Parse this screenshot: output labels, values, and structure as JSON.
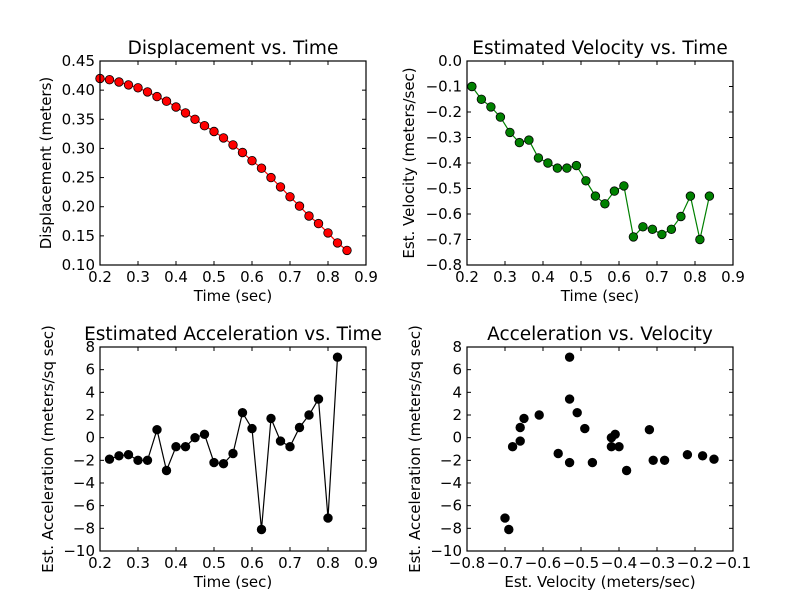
{
  "chart_data": [
    {
      "type": "line",
      "title": "Displacement vs. Time",
      "xlabel": "Time (sec)",
      "ylabel": "Displacement (meters)",
      "xlim": [
        0.2,
        0.9
      ],
      "ylim": [
        0.1,
        0.45
      ],
      "xticks": [
        "0.2",
        "0.3",
        "0.4",
        "0.5",
        "0.6",
        "0.7",
        "0.8",
        "0.9"
      ],
      "yticks": [
        "0.10",
        "0.15",
        "0.20",
        "0.25",
        "0.30",
        "0.35",
        "0.40",
        "0.45"
      ],
      "color": "#ff0000",
      "line_color": "#ff0000",
      "x": [
        0.2,
        0.225,
        0.25,
        0.275,
        0.3,
        0.325,
        0.35,
        0.375,
        0.4,
        0.425,
        0.45,
        0.475,
        0.5,
        0.525,
        0.55,
        0.575,
        0.6,
        0.625,
        0.65,
        0.675,
        0.7,
        0.725,
        0.75,
        0.775,
        0.8,
        0.825,
        0.85
      ],
      "y": [
        0.42,
        0.418,
        0.414,
        0.409,
        0.404,
        0.397,
        0.389,
        0.381,
        0.371,
        0.361,
        0.35,
        0.339,
        0.329,
        0.318,
        0.306,
        0.293,
        0.279,
        0.266,
        0.25,
        0.234,
        0.217,
        0.201,
        0.184,
        0.171,
        0.155,
        0.138,
        0.125
      ]
    },
    {
      "type": "line",
      "title": "Estimated Velocity vs. Time",
      "xlabel": "Time (sec)",
      "ylabel": "Est. Velocity (meters/sec)",
      "xlim": [
        0.2,
        0.9
      ],
      "ylim": [
        -0.8,
        0.0
      ],
      "xticks": [
        "0.2",
        "0.3",
        "0.4",
        "0.5",
        "0.6",
        "0.7",
        "0.8",
        "0.9"
      ],
      "yticks": [
        "−0.8",
        "−0.7",
        "−0.6",
        "−0.5",
        "−0.4",
        "−0.3",
        "−0.2",
        "−0.1",
        "0.0"
      ],
      "color": "#008000",
      "line_color": "#008000",
      "x": [
        0.213,
        0.238,
        0.263,
        0.288,
        0.313,
        0.338,
        0.363,
        0.388,
        0.413,
        0.438,
        0.463,
        0.488,
        0.513,
        0.538,
        0.563,
        0.588,
        0.613,
        0.638,
        0.663,
        0.688,
        0.713,
        0.738,
        0.763,
        0.788,
        0.813,
        0.838
      ],
      "y": [
        -0.1,
        -0.15,
        -0.18,
        -0.22,
        -0.28,
        -0.32,
        -0.31,
        -0.38,
        -0.4,
        -0.42,
        -0.42,
        -0.41,
        -0.47,
        -0.53,
        -0.56,
        -0.51,
        -0.49,
        -0.69,
        -0.65,
        -0.66,
        -0.68,
        -0.66,
        -0.61,
        -0.53,
        -0.7,
        -0.53
      ]
    },
    {
      "type": "line",
      "title": "Estimated Acceleration vs. Time",
      "xlabel": "Time (sec)",
      "ylabel": "Est. Acceleration (meters/sq sec)",
      "xlim": [
        0.2,
        0.9
      ],
      "ylim": [
        -10,
        8
      ],
      "xticks": [
        "0.2",
        "0.3",
        "0.4",
        "0.5",
        "0.6",
        "0.7",
        "0.8",
        "0.9"
      ],
      "yticks": [
        "−10",
        "−8",
        "−6",
        "−4",
        "−2",
        "0",
        "2",
        "4",
        "6",
        "8"
      ],
      "color": "#000000",
      "line_color": "#000000",
      "x": [
        0.225,
        0.25,
        0.275,
        0.3,
        0.325,
        0.35,
        0.375,
        0.4,
        0.425,
        0.45,
        0.475,
        0.5,
        0.525,
        0.55,
        0.575,
        0.6,
        0.625,
        0.65,
        0.675,
        0.7,
        0.725,
        0.75,
        0.775,
        0.8,
        0.825
      ],
      "y": [
        -1.9,
        -1.6,
        -1.5,
        -2.0,
        -2.0,
        0.7,
        -2.9,
        -0.8,
        -0.8,
        0.0,
        0.3,
        -2.2,
        -2.3,
        -1.4,
        2.2,
        0.8,
        -8.1,
        1.7,
        -0.3,
        -0.8,
        0.9,
        2.0,
        3.4,
        -7.1,
        7.1
      ]
    },
    {
      "type": "scatter",
      "title": "Acceleration vs. Velocity",
      "xlabel": "Est. Velocity (meters/sec)",
      "ylabel": "Est. Acceleration (meters/sq sec)",
      "xlim": [
        -0.8,
        -0.1
      ],
      "ylim": [
        -10,
        8
      ],
      "xticks": [
        "−0.8",
        "−0.7",
        "−0.6",
        "−0.5",
        "−0.4",
        "−0.3",
        "−0.2",
        "−0.1"
      ],
      "yticks": [
        "−10",
        "−8",
        "−6",
        "−4",
        "−2",
        "0",
        "2",
        "4",
        "6",
        "8"
      ],
      "color": "#000000",
      "line_color": "none",
      "x": [
        -0.7,
        -0.69,
        -0.68,
        -0.66,
        -0.66,
        -0.65,
        -0.61,
        -0.56,
        -0.53,
        -0.53,
        -0.53,
        -0.51,
        -0.49,
        -0.47,
        -0.42,
        -0.42,
        -0.41,
        -0.4,
        -0.38,
        -0.31,
        -0.32,
        -0.28,
        -0.22,
        -0.18,
        -0.15
      ],
      "y": [
        -7.1,
        -8.1,
        -0.8,
        -0.3,
        0.9,
        1.7,
        2.0,
        -1.4,
        7.1,
        3.4,
        -2.2,
        2.2,
        0.8,
        -2.2,
        0.0,
        -0.8,
        0.3,
        -0.8,
        -2.9,
        -2.0,
        0.7,
        -2.0,
        -1.5,
        -1.6,
        -1.9
      ]
    }
  ]
}
